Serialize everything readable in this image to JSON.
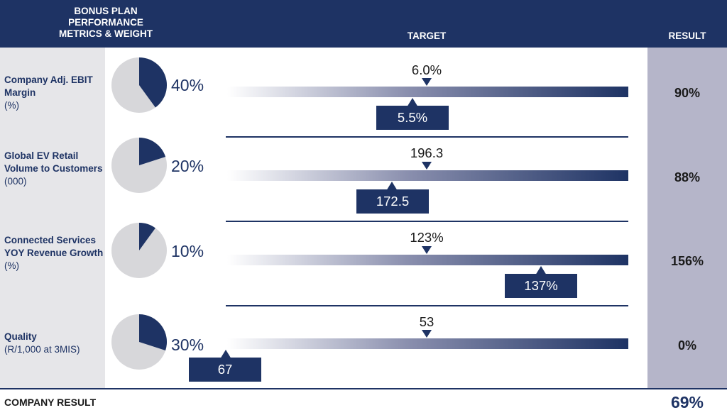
{
  "header": {
    "metric_title": "BONUS PLAN\nPERFORMANCE\nMETRICS & WEIGHT",
    "target_title": "TARGET",
    "result_title": "RESULT"
  },
  "colors": {
    "navy": "#1e3364",
    "pie_grey": "#d7d7da",
    "left_panel": "#e6e6e9",
    "result_panel": "#b5b5c9"
  },
  "chart_data": {
    "type": "bar",
    "title": "Bonus Plan Performance Metrics",
    "rows": [
      {
        "label": "Company Adj. EBIT Margin",
        "unit": "(%)",
        "weight": "40%",
        "weight_value": 40,
        "target": "6.0%",
        "actual": "5.5%",
        "result": "90%"
      },
      {
        "label": "Global EV Retail Volume to Customers",
        "unit": "(000)",
        "weight": "20%",
        "weight_value": 20,
        "target": "196.3",
        "actual": "172.5",
        "result": "88%"
      },
      {
        "label": "Connected Services YOY Revenue Growth",
        "unit": "(%)",
        "weight": "10%",
        "weight_value": 10,
        "target": "123%",
        "actual": "137%",
        "result": "156%"
      },
      {
        "label": "Quality",
        "unit": "(R/1,000 at 3MIS)",
        "weight": "30%",
        "weight_value": 30,
        "target": "53",
        "actual": "67",
        "result": "0%"
      }
    ]
  },
  "footer": {
    "label": "COMPANY RESULT",
    "value": "69%"
  }
}
